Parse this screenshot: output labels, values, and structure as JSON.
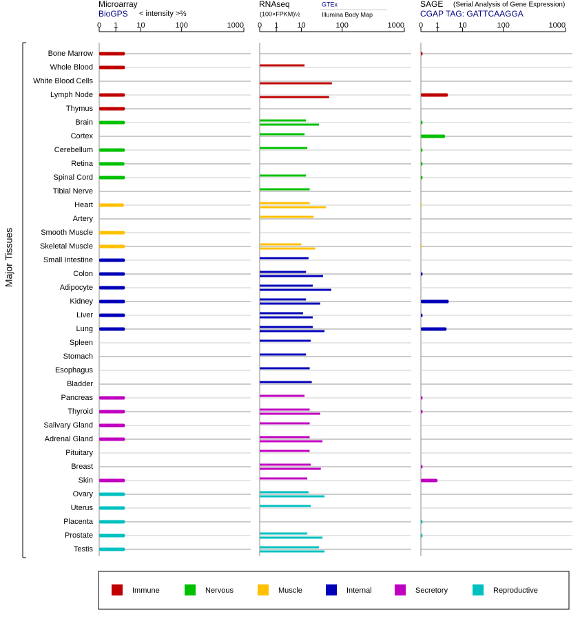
{
  "group_label": "Major Tissues",
  "categories": [
    "Bone Marrow",
    "Whole Blood",
    "White Blood Cells",
    "Lymph Node",
    "Thymus",
    "Brain",
    "Cortex",
    "Cerebellum",
    "Retina",
    "Spinal Cord",
    "Tibial Nerve",
    "Heart",
    "Artery",
    "Smooth Muscle",
    "Skeletal Muscle",
    "Small Intestine",
    "Colon",
    "Adipocyte",
    "Kidney",
    "Liver",
    "Lung",
    "Spleen",
    "Stomach",
    "Esophagus",
    "Bladder",
    "Pancreas",
    "Thyroid",
    "Salivary Gland",
    "Adrenal Gland",
    "Pituitary",
    "Breast",
    "Skin",
    "Ovary",
    "Uterus",
    "Placenta",
    "Prostate",
    "Testis"
  ],
  "category_groups": [
    "Immune",
    "Immune",
    "Immune",
    "Immune",
    "Immune",
    "Nervous",
    "Nervous",
    "Nervous",
    "Nervous",
    "Nervous",
    "Nervous",
    "Muscle",
    "Muscle",
    "Muscle",
    "Muscle",
    "Internal",
    "Internal",
    "Internal",
    "Internal",
    "Internal",
    "Internal",
    "Internal",
    "Internal",
    "Internal",
    "Internal",
    "Secretory",
    "Secretory",
    "Secretory",
    "Secretory",
    "Secretory",
    "Secretory",
    "Secretory",
    "Reproductive",
    "Reproductive",
    "Reproductive",
    "Reproductive",
    "Reproductive"
  ],
  "legend": [
    {
      "name": "Immune",
      "color": "#c00000"
    },
    {
      "name": "Nervous",
      "color": "#00c000"
    },
    {
      "name": "Muscle",
      "color": "#ffc000"
    },
    {
      "name": "Internal",
      "color": "#0000b8"
    },
    {
      "name": "Secretory",
      "color": "#c000c0"
    },
    {
      "name": "Reproductive",
      "color": "#00c0c0"
    }
  ],
  "chart_data": [
    {
      "type": "bar",
      "title": "Microarray",
      "subtitle": "BioGPS",
      "x_label": "< intensity >⅔",
      "xlim": [
        0,
        1000
      ],
      "xticks": [
        0,
        1,
        10,
        100,
        1000
      ],
      "series": [
        {
          "values": [
            2.3,
            2.3,
            null,
            2.3,
            2.3,
            2.3,
            null,
            2.3,
            2.2,
            2.3,
            null,
            2.1,
            null,
            2.3,
            2.3,
            2.3,
            2.3,
            2.3,
            2.3,
            2.3,
            2.3,
            null,
            null,
            null,
            null,
            2.3,
            2.3,
            2.3,
            2.3,
            null,
            null,
            2.3,
            2.3,
            2.3,
            2.3,
            2.3,
            2.3
          ]
        }
      ]
    },
    {
      "type": "bar",
      "title": "RNAseq",
      "x_label": "(100×FPKM)½",
      "xlim": [
        0,
        1000
      ],
      "xticks": [
        0,
        1,
        10,
        100,
        1000
      ],
      "series": [
        {
          "name": "GTEx",
          "values": [
            null,
            12,
            null,
            null,
            null,
            13,
            12,
            14,
            null,
            13,
            16,
            16,
            20,
            null,
            10,
            15,
            13,
            19,
            13,
            11,
            19,
            17,
            13,
            16,
            18,
            12,
            16,
            16,
            16,
            16,
            17,
            14,
            15,
            17,
            null,
            14,
            27
          ]
        },
        {
          "name": "Illumina Body Map",
          "values": [
            null,
            null,
            56,
            48,
            null,
            27,
            null,
            null,
            null,
            null,
            null,
            40,
            null,
            null,
            22,
            null,
            34,
            54,
            29,
            19,
            37,
            null,
            null,
            null,
            null,
            null,
            29,
            null,
            33,
            null,
            30,
            null,
            37,
            null,
            null,
            33,
            37
          ]
        }
      ]
    },
    {
      "type": "bar",
      "title": "SAGE",
      "note": "(Serial Analysis of Gene Expression)",
      "subtitle": "CGAP TAG: GATTCAAGGA",
      "xlim": [
        0,
        1000
      ],
      "xticks": [
        0,
        1,
        10,
        100,
        1000
      ],
      "series": [
        {
          "values": [
            0.1,
            null,
            null,
            2.6,
            null,
            0.1,
            2,
            0.1,
            0.1,
            0.1,
            null,
            0.05,
            null,
            null,
            0.05,
            null,
            0.1,
            null,
            2.8,
            0.1,
            2.3,
            null,
            null,
            null,
            null,
            0.1,
            0.1,
            null,
            null,
            null,
            0.1,
            1,
            null,
            null,
            0.1,
            0.1,
            null
          ]
        }
      ]
    }
  ]
}
